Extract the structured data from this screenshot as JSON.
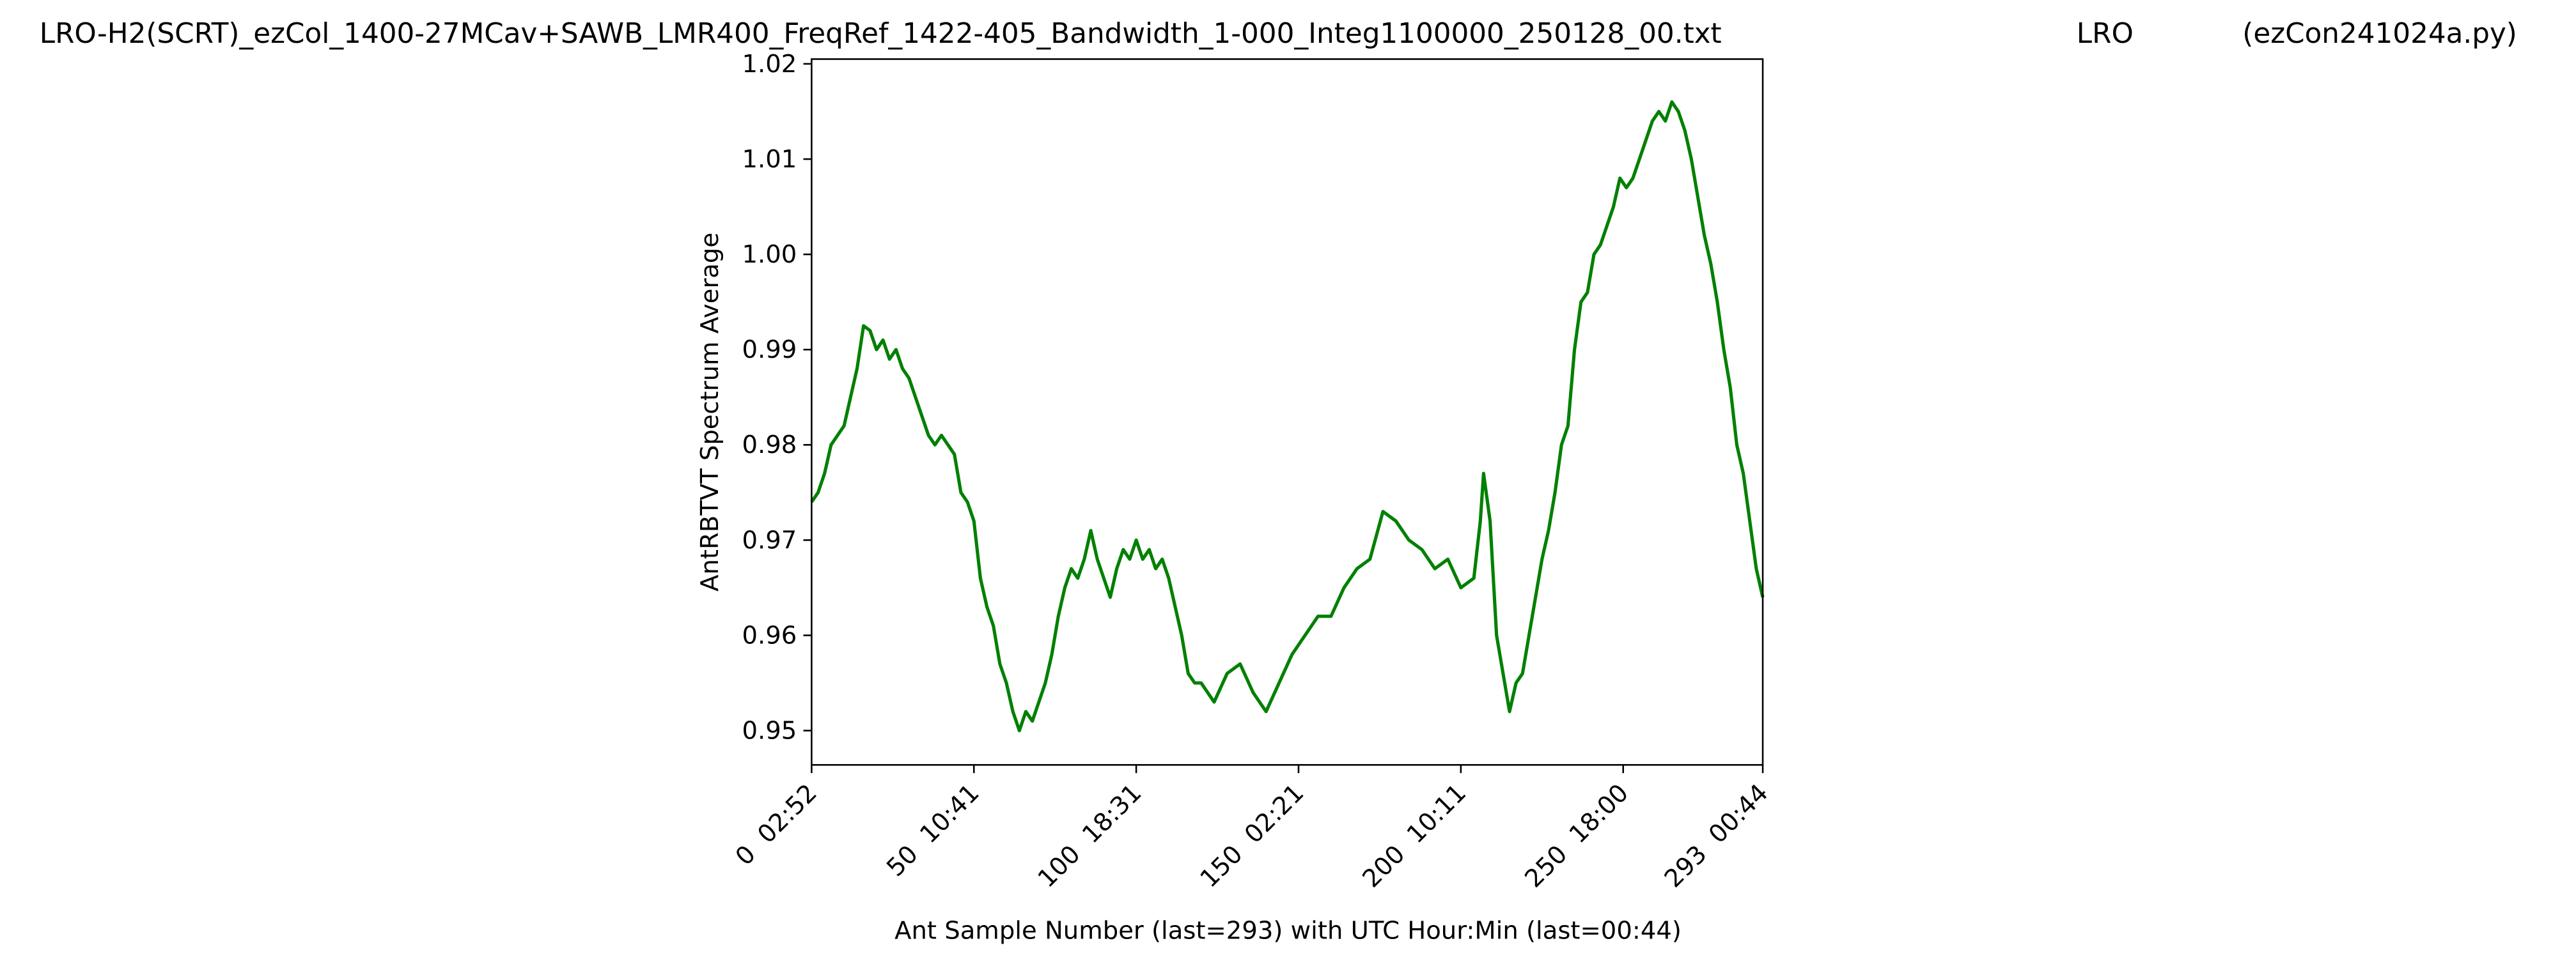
{
  "chart_data": {
    "type": "line",
    "title": [
      "LRO-H2(SCRT)_ezCol_1400-27MCav+SAWB_LMR400_FreqRef_1422-405_Bandwidth_1-000_Integ1100000_250128_00.txt",
      "LRO",
      "(ezCon241024a.py)"
    ],
    "xlabel": "Ant Sample Number (last=293) with UTC Hour:Min (last=00:44)",
    "ylabel": "AntRBTVT Spectrum Average",
    "xlim": [
      0,
      293
    ],
    "ylim": [
      0.9464,
      1.0205
    ],
    "xticks": [
      {
        "value": 0,
        "label": "0  02:52"
      },
      {
        "value": 50,
        "label": "50  10:41"
      },
      {
        "value": 100,
        "label": "100  18:31"
      },
      {
        "value": 150,
        "label": "150  02:21"
      },
      {
        "value": 200,
        "label": "200  10:11"
      },
      {
        "value": 250,
        "label": "250  18:00"
      },
      {
        "value": 293,
        "label": "293  00:44"
      }
    ],
    "yticks": [
      0.95,
      0.96,
      0.97,
      0.98,
      0.99,
      {
        "value": 1,
        "label": "1.00"
      },
      1.01,
      1.02
    ],
    "grid": false,
    "series": [
      {
        "color": "#008000",
        "x": [
          0,
          2,
          4,
          6,
          8,
          10,
          12,
          14,
          16,
          18,
          20,
          22,
          24,
          26,
          28,
          30,
          32,
          34,
          36,
          38,
          40,
          42,
          44,
          46,
          48,
          50,
          52,
          54,
          56,
          58,
          60,
          62,
          64,
          66,
          68,
          70,
          72,
          74,
          76,
          78,
          80,
          82,
          84,
          86,
          88,
          90,
          92,
          94,
          96,
          98,
          100,
          102,
          104,
          106,
          108,
          110,
          112,
          114,
          116,
          118,
          120,
          124,
          128,
          132,
          136,
          140,
          144,
          148,
          152,
          156,
          160,
          164,
          168,
          172,
          176,
          180,
          184,
          188,
          192,
          196,
          200,
          204,
          206,
          207,
          209,
          211,
          213,
          215,
          217,
          219,
          221,
          223,
          225,
          227,
          229,
          231,
          233,
          235,
          237,
          239,
          241,
          243,
          245,
          247,
          249,
          251,
          253,
          255,
          257,
          259,
          261,
          263,
          265,
          267,
          269,
          271,
          273,
          275,
          277,
          279,
          281,
          283,
          285,
          287,
          289,
          291,
          293
        ],
        "values": [
          0.974,
          0.975,
          0.977,
          0.98,
          0.981,
          0.982,
          0.985,
          0.988,
          0.9925,
          0.992,
          0.99,
          0.991,
          0.989,
          0.99,
          0.988,
          0.987,
          0.985,
          0.983,
          0.981,
          0.98,
          0.981,
          0.98,
          0.979,
          0.975,
          0.974,
          0.972,
          0.966,
          0.963,
          0.961,
          0.957,
          0.955,
          0.952,
          0.95,
          0.952,
          0.951,
          0.953,
          0.955,
          0.958,
          0.962,
          0.965,
          0.967,
          0.966,
          0.968,
          0.971,
          0.968,
          0.966,
          0.964,
          0.967,
          0.969,
          0.968,
          0.97,
          0.968,
          0.969,
          0.967,
          0.968,
          0.966,
          0.963,
          0.96,
          0.956,
          0.955,
          0.955,
          0.953,
          0.956,
          0.957,
          0.954,
          0.952,
          0.955,
          0.958,
          0.96,
          0.962,
          0.962,
          0.965,
          0.967,
          0.968,
          0.973,
          0.972,
          0.97,
          0.969,
          0.967,
          0.968,
          0.965,
          0.966,
          0.972,
          0.977,
          0.972,
          0.96,
          0.956,
          0.952,
          0.955,
          0.956,
          0.96,
          0.964,
          0.968,
          0.971,
          0.975,
          0.98,
          0.982,
          0.99,
          0.995,
          0.996,
          1.0,
          1.001,
          1.003,
          1.005,
          1.008,
          1.007,
          1.008,
          1.01,
          1.012,
          1.014,
          1.015,
          1.014,
          1.016,
          1.015,
          1.013,
          1.01,
          1.006,
          1.002,
          0.999,
          0.995,
          0.99,
          0.986,
          0.98,
          0.977,
          0.972,
          0.967,
          0.964
        ]
      }
    ]
  }
}
